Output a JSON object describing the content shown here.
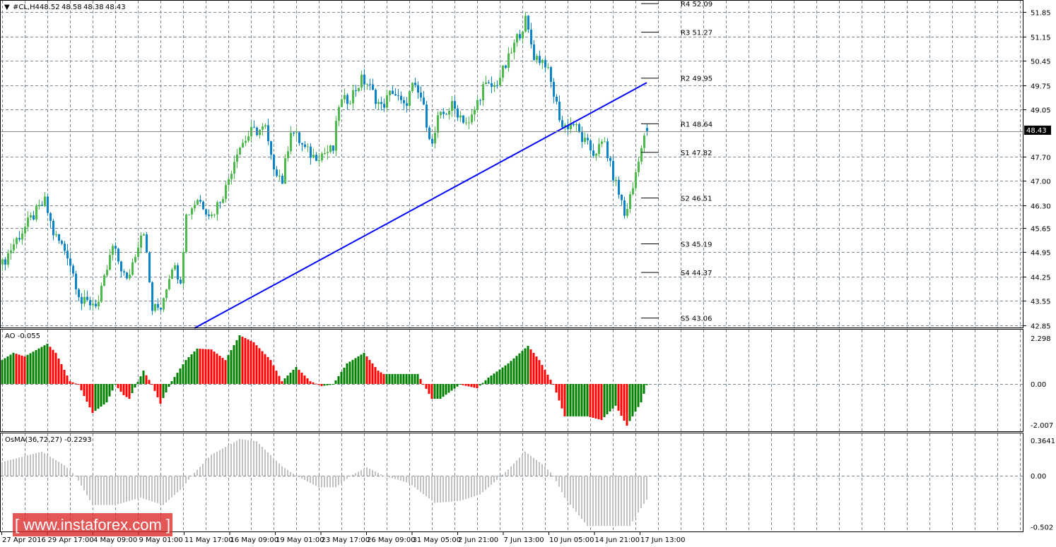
{
  "chart_data": [
    {
      "type": "candlestick",
      "title": "#CL,H4",
      "ohlc_last": {
        "open": "48.52",
        "high": "48.58",
        "low": "48.38",
        "close": "48.43"
      },
      "current_price": "48.43",
      "ylim": [
        42.85,
        51.85
      ],
      "y_ticks": [
        "51.85",
        "51.15",
        "50.45",
        "49.75",
        "49.05",
        "47.70",
        "47.00",
        "46.30",
        "45.65",
        "44.95",
        "44.25",
        "43.55",
        "42.85"
      ],
      "bars": 229,
      "price_path_note": "estimated close path as [bar_index, price] keypoints",
      "price_path": [
        [
          0,
          44.6
        ],
        [
          4,
          45.2
        ],
        [
          10,
          45.9
        ],
        [
          15,
          46.4
        ],
        [
          18,
          45.5
        ],
        [
          23,
          44.9
        ],
        [
          28,
          43.5
        ],
        [
          34,
          43.5
        ],
        [
          39,
          45.1
        ],
        [
          44,
          44.1
        ],
        [
          49,
          45.5
        ],
        [
          50,
          45.6
        ],
        [
          53,
          43.3
        ],
        [
          56,
          43.4
        ],
        [
          60,
          44.6
        ],
        [
          63,
          44.2
        ],
        [
          65,
          46.0
        ],
        [
          69,
          46.5
        ],
        [
          74,
          46.0
        ],
        [
          79,
          46.8
        ],
        [
          83,
          47.9
        ],
        [
          88,
          48.4
        ],
        [
          93,
          48.5
        ],
        [
          95,
          47.6
        ],
        [
          99,
          47.0
        ],
        [
          102,
          48.5
        ],
        [
          107,
          47.9
        ],
        [
          110,
          47.7
        ],
        [
          117,
          47.9
        ],
        [
          119,
          49.2
        ],
        [
          123,
          49.4
        ],
        [
          127,
          49.9
        ],
        [
          129,
          49.8
        ],
        [
          134,
          49.1
        ],
        [
          138,
          49.6
        ],
        [
          142,
          49.1
        ],
        [
          145,
          49.7
        ],
        [
          148,
          49.4
        ],
        [
          152,
          48.0
        ],
        [
          154,
          48.75
        ],
        [
          159,
          49.15
        ],
        [
          165,
          48.6
        ],
        [
          170,
          49.7
        ],
        [
          174,
          49.7
        ],
        [
          178,
          50.3
        ],
        [
          182,
          51.1
        ],
        [
          185,
          51.6
        ],
        [
          188,
          50.6
        ],
        [
          192,
          50.4
        ],
        [
          194,
          49.8
        ],
        [
          198,
          48.55
        ],
        [
          202,
          48.65
        ],
        [
          205,
          48.2
        ],
        [
          209,
          47.8
        ],
        [
          213,
          48.1
        ],
        [
          215,
          47.4
        ],
        [
          219,
          46.4
        ],
        [
          220,
          46.0
        ],
        [
          223,
          46.8
        ],
        [
          225,
          47.7
        ],
        [
          228,
          48.43
        ]
      ],
      "trendline": {
        "from": [
          68,
          42.77
        ],
        "to": [
          228,
          49.82
        ],
        "color": "#0000ff"
      },
      "pivots": [
        {
          "label": "R4 52.09",
          "value": 52.09
        },
        {
          "label": "R3 51.27",
          "value": 51.27
        },
        {
          "label": "R2 49.95",
          "value": 49.95
        },
        {
          "label": "R1 48.64",
          "value": 48.64
        },
        {
          "label": "S1 47.82",
          "value": 47.82
        },
        {
          "label": "S2 46.51",
          "value": 46.51
        },
        {
          "label": "S3 45.19",
          "value": 45.19
        },
        {
          "label": "S4 44.37",
          "value": 44.37
        },
        {
          "label": "S5 43.06",
          "value": 43.06
        }
      ],
      "colors": {
        "bull": "#4cbb4c",
        "bear": "#0a84c8"
      }
    },
    {
      "type": "bar",
      "title": "AO -0.055",
      "ylim": [
        -2.007,
        2.298
      ],
      "y_ticks": [
        "2.298",
        "0.00",
        "-2.007"
      ],
      "path": [
        [
          0,
          1.13
        ],
        [
          4,
          1.47
        ],
        [
          8,
          1.3
        ],
        [
          16,
          1.9
        ],
        [
          19,
          1.47
        ],
        [
          24,
          0.13
        ],
        [
          27,
          -0.03
        ],
        [
          32,
          -1.37
        ],
        [
          37,
          -0.87
        ],
        [
          40,
          -0.03
        ],
        [
          43,
          -0.53
        ],
        [
          45,
          -0.7
        ],
        [
          50,
          0.63
        ],
        [
          53,
          -0.03
        ],
        [
          56,
          -0.93
        ],
        [
          60,
          0.13
        ],
        [
          65,
          1.13
        ],
        [
          69,
          1.67
        ],
        [
          74,
          1.63
        ],
        [
          79,
          1.13
        ],
        [
          84,
          2.3
        ],
        [
          89,
          1.97
        ],
        [
          95,
          1.13
        ],
        [
          99,
          0.13
        ],
        [
          104,
          0.8
        ],
        [
          109,
          0.13
        ],
        [
          113,
          -0.1
        ],
        [
          117,
          -0.03
        ],
        [
          122,
          0.97
        ],
        [
          128,
          1.47
        ],
        [
          133,
          0.63
        ],
        [
          135,
          0.47
        ],
        [
          147,
          0.47
        ],
        [
          152,
          -0.7
        ],
        [
          155,
          -0.7
        ],
        [
          162,
          -0.03
        ],
        [
          168,
          -0.2
        ],
        [
          172,
          0.3
        ],
        [
          179,
          0.97
        ],
        [
          186,
          1.8
        ],
        [
          190,
          1.13
        ],
        [
          195,
          -0.03
        ],
        [
          199,
          -1.53
        ],
        [
          207,
          -1.53
        ],
        [
          212,
          -1.7
        ],
        [
          217,
          -1.03
        ],
        [
          221,
          -1.97
        ],
        [
          226,
          -0.87
        ],
        [
          228,
          -0.055
        ]
      ],
      "colors": {
        "up": "#008000",
        "down": "#ff0000"
      }
    },
    {
      "type": "bar",
      "title": "OsMA(36,72,27) -0.2293",
      "ylim": [
        -0.502,
        0.3641
      ],
      "y_ticks": [
        "0.3641",
        "0.00",
        "-0.502"
      ],
      "path": [
        [
          0,
          0.13
        ],
        [
          14,
          0.23
        ],
        [
          22,
          0.1
        ],
        [
          26,
          0.0
        ],
        [
          32,
          -0.28
        ],
        [
          40,
          -0.28
        ],
        [
          49,
          -0.21
        ],
        [
          57,
          -0.28
        ],
        [
          64,
          -0.11
        ],
        [
          67,
          0.0
        ],
        [
          74,
          0.2
        ],
        [
          84,
          0.35
        ],
        [
          90,
          0.33
        ],
        [
          99,
          0.09
        ],
        [
          104,
          0.0
        ],
        [
          112,
          -0.11
        ],
        [
          118,
          -0.11
        ],
        [
          124,
          0.01
        ],
        [
          129,
          0.08
        ],
        [
          135,
          0.0
        ],
        [
          144,
          -0.07
        ],
        [
          153,
          -0.26
        ],
        [
          162,
          -0.24
        ],
        [
          169,
          -0.18
        ],
        [
          175,
          -0.04
        ],
        [
          179,
          0.06
        ],
        [
          185,
          0.23
        ],
        [
          192,
          0.09
        ],
        [
          195,
          0.0
        ],
        [
          199,
          -0.21
        ],
        [
          207,
          -0.48
        ],
        [
          217,
          -0.48
        ],
        [
          222,
          -0.48
        ],
        [
          225,
          -0.35
        ],
        [
          228,
          -0.2293
        ]
      ],
      "color": "#c0c0c0"
    }
  ],
  "time_axis": [
    "27 Apr 2016",
    "29 Apr 17:00",
    "4 May 09:00",
    "9 May 01:00",
    "11 May 17:00",
    "16 May 09:00",
    "19 May 01:00",
    "23 May 17:00",
    "26 May 09:00",
    "31 May 05:00",
    "2 Jun 21:00",
    "7 Jun 13:00",
    "10 Jun 05:00",
    "14 Jun 21:00",
    "17 Jun 13:00"
  ],
  "watermark": "[ www.instaforex.com ]"
}
